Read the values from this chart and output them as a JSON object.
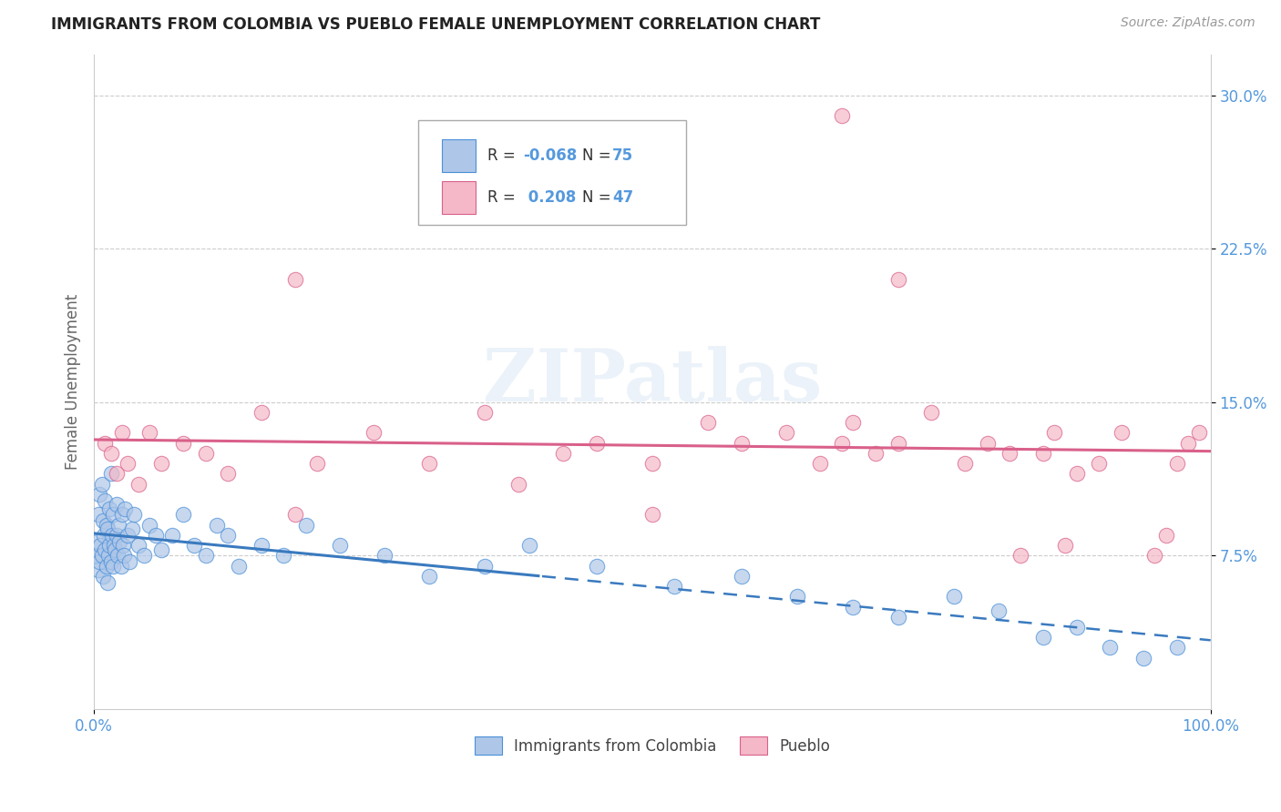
{
  "title": "IMMIGRANTS FROM COLOMBIA VS PUEBLO FEMALE UNEMPLOYMENT CORRELATION CHART",
  "source": "Source: ZipAtlas.com",
  "ylabel": "Female Unemployment",
  "xlim": [
    0,
    100
  ],
  "ylim": [
    0,
    32
  ],
  "ytick_vals": [
    7.5,
    15.0,
    22.5,
    30.0
  ],
  "ytick_labels": [
    "7.5%",
    "15.0%",
    "22.5%",
    "30.0%"
  ],
  "xtick_vals": [
    0,
    100
  ],
  "xtick_labels": [
    "0.0%",
    "100.0%"
  ],
  "blue_color": "#aec6e8",
  "blue_edge_color": "#4a90d9",
  "pink_color": "#f4b8c8",
  "pink_edge_color": "#d9608a",
  "blue_line_color": "#3a7abf",
  "pink_line_color": "#d9608a",
  "r1": "-0.068",
  "n1": "75",
  "r2": "0.208",
  "n2": "47",
  "blue_scatter_x": [
    0.2,
    0.3,
    0.4,
    0.4,
    0.5,
    0.5,
    0.6,
    0.7,
    0.7,
    0.8,
    0.8,
    0.9,
    1.0,
    1.0,
    1.1,
    1.1,
    1.2,
    1.2,
    1.3,
    1.4,
    1.4,
    1.5,
    1.5,
    1.6,
    1.7,
    1.7,
    1.8,
    1.9,
    2.0,
    2.0,
    2.1,
    2.2,
    2.3,
    2.4,
    2.5,
    2.6,
    2.7,
    2.8,
    3.0,
    3.2,
    3.4,
    3.6,
    4.0,
    4.5,
    5.0,
    5.5,
    6.0,
    7.0,
    8.0,
    9.0,
    10.0,
    11.0,
    12.0,
    13.0,
    15.0,
    17.0,
    19.0,
    22.0,
    26.0,
    30.0,
    35.0,
    39.0,
    45.0,
    52.0,
    58.0,
    63.0,
    68.0,
    72.0,
    77.0,
    81.0,
    85.0,
    88.0,
    91.0,
    94.0,
    97.0
  ],
  "blue_scatter_y": [
    7.5,
    8.2,
    6.8,
    9.5,
    7.2,
    10.5,
    8.0,
    7.5,
    11.0,
    6.5,
    9.2,
    8.5,
    7.8,
    10.2,
    9.0,
    7.0,
    8.8,
    6.2,
    7.5,
    8.0,
    9.8,
    7.2,
    11.5,
    8.5,
    7.0,
    9.5,
    8.0,
    7.8,
    8.5,
    10.0,
    7.5,
    9.0,
    8.2,
    7.0,
    9.5,
    8.0,
    7.5,
    9.8,
    8.5,
    7.2,
    8.8,
    9.5,
    8.0,
    7.5,
    9.0,
    8.5,
    7.8,
    8.5,
    9.5,
    8.0,
    7.5,
    9.0,
    8.5,
    7.0,
    8.0,
    7.5,
    9.0,
    8.0,
    7.5,
    6.5,
    7.0,
    8.0,
    7.0,
    6.0,
    6.5,
    5.5,
    5.0,
    4.5,
    5.5,
    4.8,
    3.5,
    4.0,
    3.0,
    2.5,
    3.0
  ],
  "pink_scatter_x": [
    1.0,
    1.5,
    2.0,
    2.5,
    3.0,
    4.0,
    5.0,
    6.0,
    8.0,
    10.0,
    12.0,
    15.0,
    18.0,
    20.0,
    25.0,
    30.0,
    35.0,
    38.0,
    42.0,
    45.0,
    50.0,
    55.0,
    58.0,
    62.0,
    65.0,
    68.0,
    70.0,
    72.0,
    75.0,
    78.0,
    80.0,
    82.0,
    85.0,
    86.0,
    88.0,
    90.0,
    92.0,
    95.0,
    96.0,
    97.0,
    98.0,
    99.0,
    83.0,
    87.0,
    67.0,
    50.0,
    18.0
  ],
  "pink_scatter_y": [
    13.0,
    12.5,
    11.5,
    13.5,
    12.0,
    11.0,
    13.5,
    12.0,
    13.0,
    12.5,
    11.5,
    14.5,
    21.0,
    12.0,
    13.5,
    12.0,
    14.5,
    11.0,
    12.5,
    13.0,
    12.0,
    14.0,
    13.0,
    13.5,
    12.0,
    14.0,
    12.5,
    13.0,
    14.5,
    12.0,
    13.0,
    12.5,
    12.5,
    13.5,
    11.5,
    12.0,
    13.5,
    7.5,
    8.5,
    12.0,
    13.0,
    13.5,
    7.5,
    8.0,
    13.0,
    9.5,
    9.5
  ],
  "pink_outlier_x": [
    67.0
  ],
  "pink_outlier_y": [
    29.0
  ],
  "pink_outlier2_x": [
    72.0
  ],
  "pink_outlier2_y": [
    21.0
  ],
  "watermark_text": "ZIPatlas",
  "background_color": "#ffffff",
  "grid_color": "#cccccc",
  "tick_color": "#5599dd",
  "label_color": "#666666"
}
